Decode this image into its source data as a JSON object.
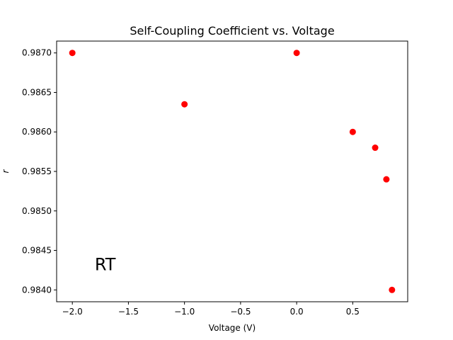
{
  "chart_data": {
    "type": "scatter",
    "title": "Self-Coupling Coefficient vs. Voltage",
    "xlabel": "Voltage (V)",
    "ylabel": "r",
    "xlim": [
      -2.14,
      0.99
    ],
    "ylim": [
      0.98385,
      0.98715
    ],
    "xticks": [
      -2.0,
      -1.5,
      -1.0,
      -0.5,
      0.0,
      0.5
    ],
    "xtick_labels": [
      "−2.0",
      "−1.5",
      "−1.0",
      "−0.5",
      "0.0",
      "0.5"
    ],
    "yticks": [
      0.984,
      0.9845,
      0.985,
      0.9855,
      0.986,
      0.9865,
      0.987
    ],
    "ytick_labels": [
      "0.9840",
      "0.9845",
      "0.9850",
      "0.9855",
      "0.9860",
      "0.9865",
      "0.9870"
    ],
    "grid": false,
    "series": [
      {
        "color": "#ff0000",
        "marker": "circle",
        "x": [
          -2.0,
          -1.0,
          0.0,
          0.5,
          0.7,
          0.8,
          0.85
        ],
        "y": [
          0.987,
          0.98635,
          0.987,
          0.986,
          0.9858,
          0.9854,
          0.984
        ]
      }
    ],
    "annotations": [
      {
        "text": "RT",
        "x": -1.8,
        "y": 0.98425
      }
    ]
  }
}
